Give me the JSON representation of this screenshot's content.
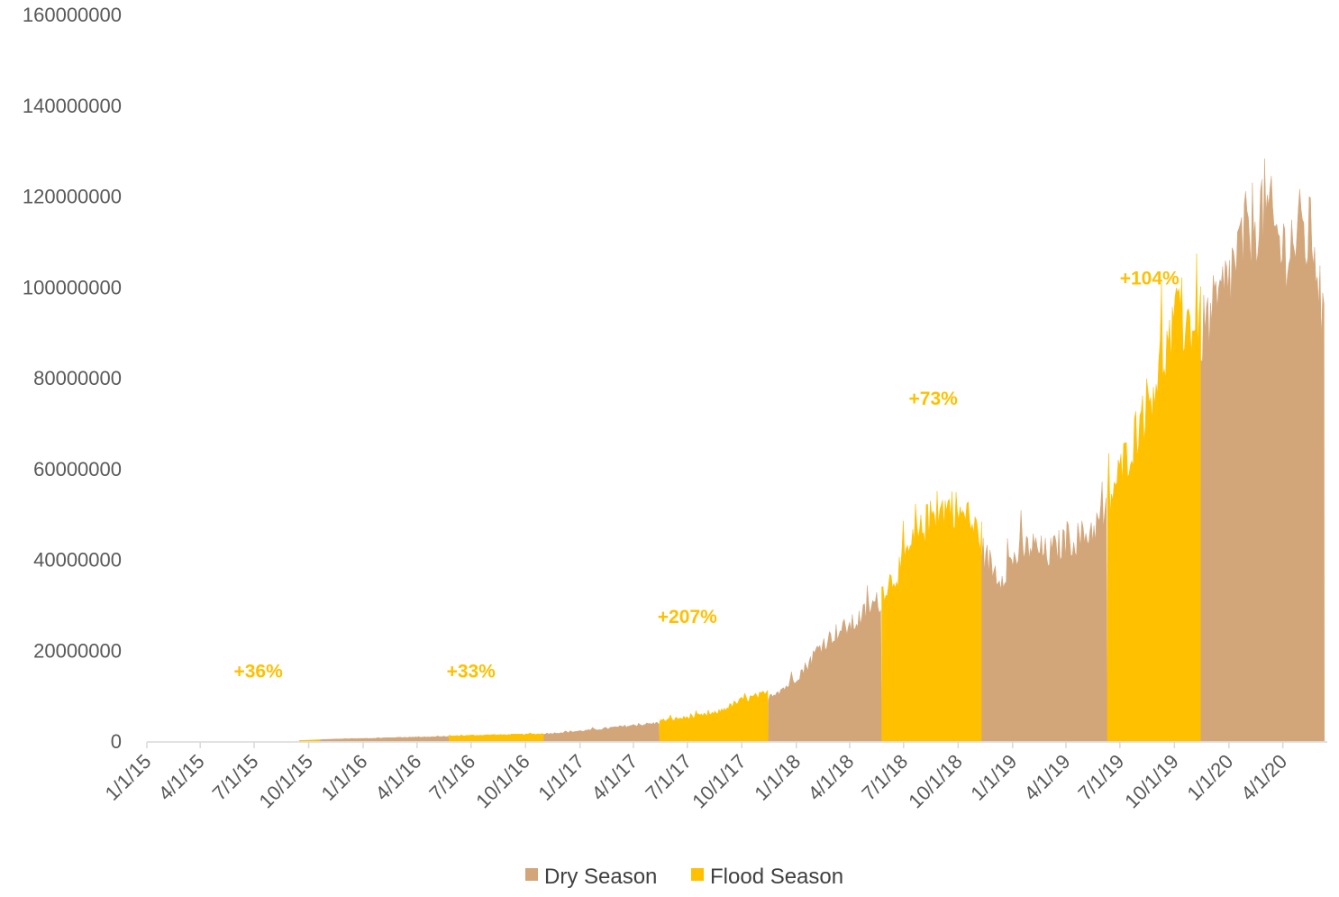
{
  "colors": {
    "dry": "#D2A679",
    "flood": "#FFC000",
    "axis": "#D9D9D9",
    "text": "#595959"
  },
  "chart_data": {
    "type": "area",
    "title": "",
    "xlabel": "",
    "ylabel": "",
    "ylim": [
      0,
      160000000
    ],
    "y_ticks": [
      "0",
      "20000000",
      "40000000",
      "60000000",
      "80000000",
      "100000000",
      "120000000",
      "140000000",
      "160000000"
    ],
    "x_ticks": [
      "1/1/15",
      "4/1/15",
      "7/1/15",
      "10/1/15",
      "1/1/16",
      "4/1/16",
      "7/1/16",
      "10/1/16",
      "1/1/17",
      "4/1/17",
      "7/1/17",
      "10/1/17",
      "1/1/18",
      "4/1/18",
      "7/1/18",
      "10/1/18",
      "1/1/19",
      "4/1/19",
      "7/1/19",
      "10/1/19",
      "1/1/20",
      "4/1/20"
    ],
    "x_range": [
      "2015-01-01",
      "2020-06-15"
    ],
    "legend_position": "bottom",
    "series": [
      {
        "name": "Dry Season",
        "segments": [
          {
            "points": [
              [
                "2015-10-20",
                300000
              ],
              [
                "2015-12-01",
                500000
              ],
              [
                "2016-01-15",
                600000
              ],
              [
                "2016-03-01",
                800000
              ],
              [
                "2016-04-20",
                900000
              ],
              [
                "2016-05-25",
                1000000
              ]
            ]
          },
          {
            "points": [
              [
                "2016-11-01",
                1600000
              ],
              [
                "2016-12-15",
                2000000
              ],
              [
                "2017-02-01",
                2600000
              ],
              [
                "2017-03-20",
                3300000
              ],
              [
                "2017-05-15",
                4000000
              ]
            ]
          },
          {
            "points": [
              [
                "2017-11-15",
                10000000
              ],
              [
                "2017-12-15",
                12000000
              ],
              [
                "2018-01-15",
                16000000
              ],
              [
                "2018-02-10",
                21000000
              ],
              [
                "2018-03-10",
                24000000
              ],
              [
                "2018-04-10",
                26000000
              ],
              [
                "2018-05-10",
                30000000
              ],
              [
                "2018-05-25",
                31000000
              ]
            ]
          },
          {
            "points": [
              [
                "2018-11-10",
                42000000
              ],
              [
                "2018-12-10",
                36000000
              ],
              [
                "2019-01-01",
                40000000
              ],
              [
                "2019-02-01",
                43000000
              ],
              [
                "2019-03-01",
                41000000
              ],
              [
                "2019-04-01",
                44000000
              ],
              [
                "2019-05-01",
                45000000
              ],
              [
                "2019-06-10",
                50000000
              ]
            ]
          },
          {
            "points": [
              [
                "2019-11-15",
                90000000
              ],
              [
                "2019-12-15",
                96000000
              ],
              [
                "2020-01-10",
                105000000
              ],
              [
                "2020-02-01",
                112000000
              ],
              [
                "2020-03-01",
                118000000
              ],
              [
                "2020-04-01",
                108000000
              ],
              [
                "2020-05-01",
                112000000
              ],
              [
                "2020-05-25",
                110000000
              ],
              [
                "2020-06-10",
                88000000
              ]
            ]
          }
        ]
      },
      {
        "name": "Flood Season",
        "segments": [
          {
            "points": [
              [
                "2015-09-15",
                100000
              ],
              [
                "2015-10-20",
                300000
              ]
            ]
          },
          {
            "points": [
              [
                "2016-05-25",
                1100000
              ],
              [
                "2016-07-15",
                1300000
              ],
              [
                "2016-09-01",
                1400000
              ],
              [
                "2016-11-01",
                1600000
              ]
            ]
          },
          {
            "points": [
              [
                "2017-05-15",
                4500000
              ],
              [
                "2017-07-01",
                5200000
              ],
              [
                "2017-08-15",
                6000000
              ],
              [
                "2017-10-01",
                9000000
              ],
              [
                "2017-11-15",
                10500000
              ]
            ]
          },
          {
            "points": [
              [
                "2018-05-25",
                33000000
              ],
              [
                "2018-06-20",
                37000000
              ],
              [
                "2018-07-20",
                44000000
              ],
              [
                "2018-08-20",
                50000000
              ],
              [
                "2018-09-20",
                52000000
              ],
              [
                "2018-10-20",
                48000000
              ],
              [
                "2018-11-10",
                45000000
              ]
            ]
          },
          {
            "points": [
              [
                "2019-06-10",
                52000000
              ],
              [
                "2019-07-10",
                62000000
              ],
              [
                "2019-08-10",
                72000000
              ],
              [
                "2019-09-10",
                84000000
              ],
              [
                "2019-10-10",
                92000000
              ],
              [
                "2019-11-15",
                92000000
              ]
            ]
          }
        ]
      }
    ],
    "annotations": [
      {
        "text": "+36%",
        "x": "2015-07-08",
        "y": 14000000
      },
      {
        "text": "+33%",
        "x": "2016-07-01",
        "y": 14000000
      },
      {
        "text": "+207%",
        "x": "2017-07-01",
        "y": 26000000
      },
      {
        "text": "+73%",
        "x": "2018-08-20",
        "y": 74000000
      },
      {
        "text": "+104%",
        "x": "2019-08-20",
        "y": 100500000
      }
    ]
  }
}
